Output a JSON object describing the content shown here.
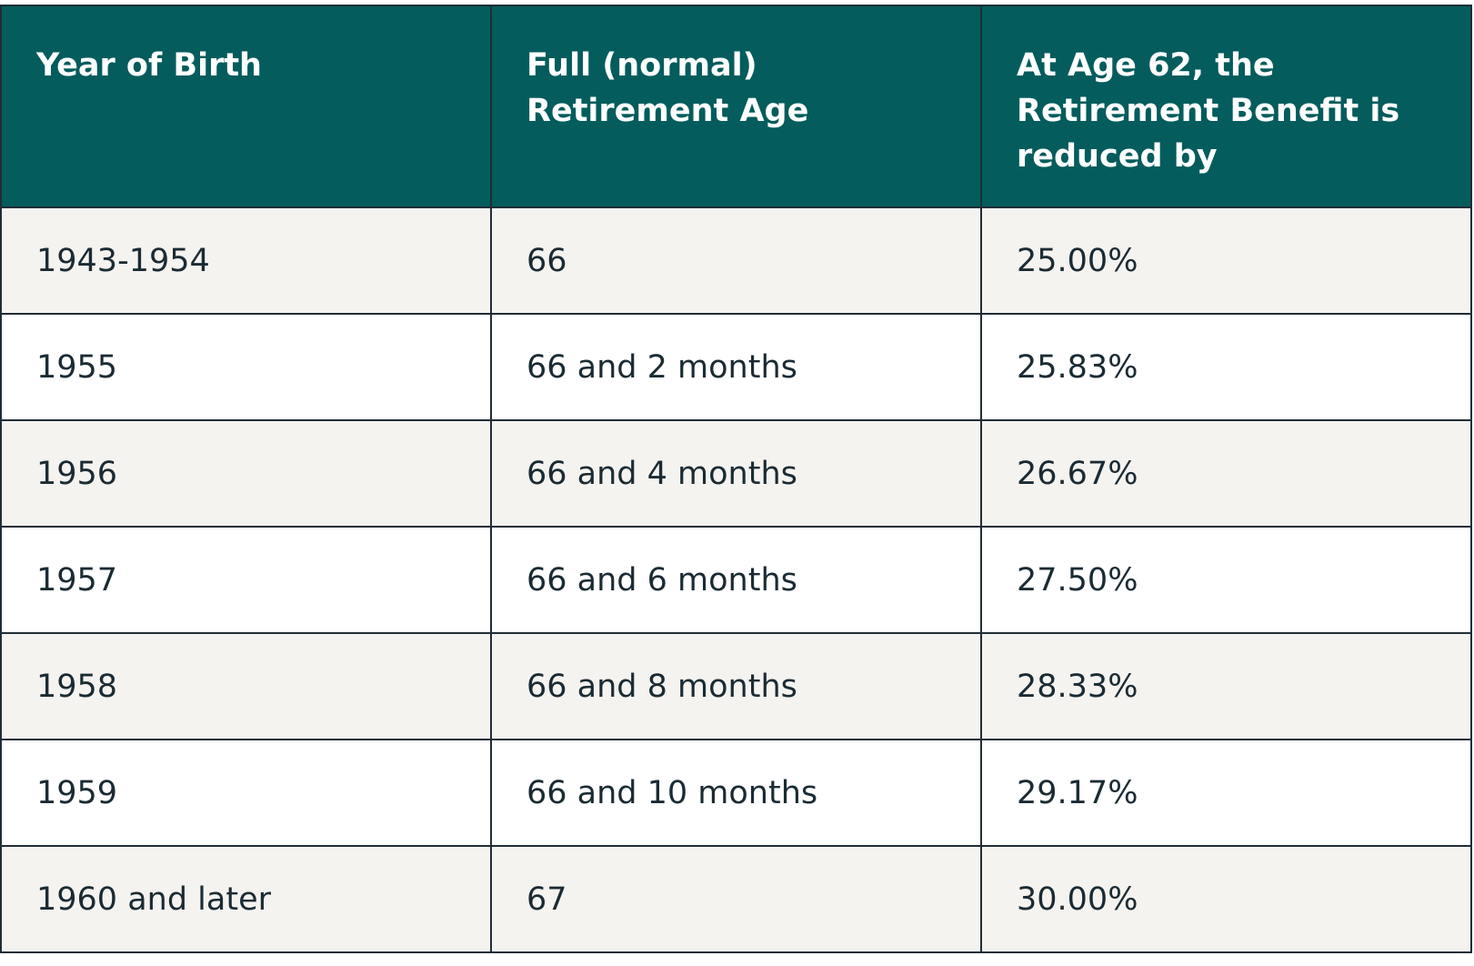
{
  "table": {
    "header": [
      "Year of Birth",
      "Full (normal) Retirement Age",
      "At Age 62, the Retirement Benefit is reduced by"
    ],
    "rows": [
      [
        "1943-1954",
        "66",
        "25.00%"
      ],
      [
        "1955",
        "66 and 2 months",
        "25.83%"
      ],
      [
        "1956",
        "66 and 4 months",
        "26.67%"
      ],
      [
        "1957",
        "66 and 6 months",
        "27.50%"
      ],
      [
        "1958",
        "66 and 8 months",
        "28.33%"
      ],
      [
        "1959",
        "66 and 10 months",
        "29.17%"
      ],
      [
        "1960 and later",
        "67",
        "30.00%"
      ]
    ]
  }
}
